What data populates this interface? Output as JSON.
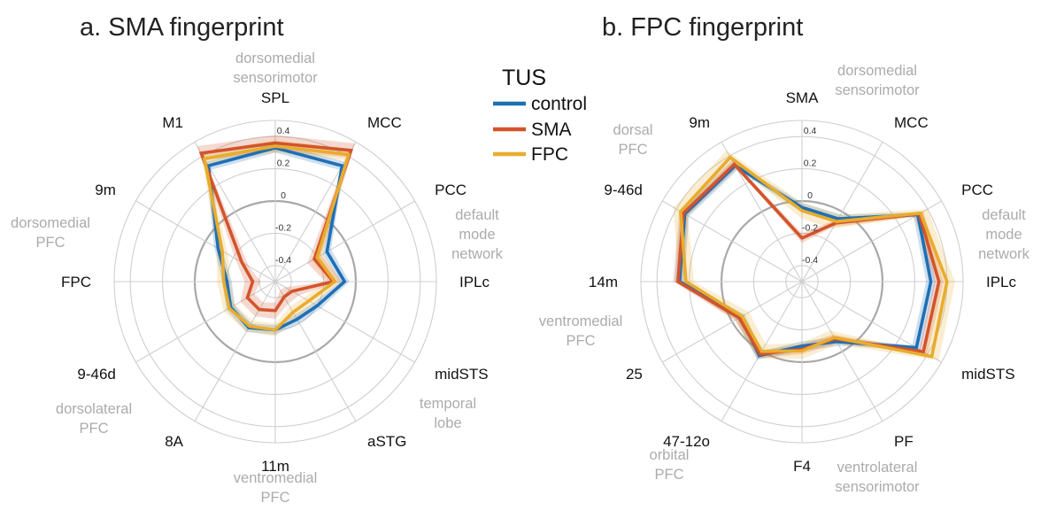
{
  "colors": {
    "control": "#1f6fb5",
    "SMA": "#d3542a",
    "FPC": "#e8ac2e",
    "grid": "#cfcfcf",
    "zero_ring": "#a8a8a8",
    "region_text": "#ababab"
  },
  "legend": {
    "title": "TUS",
    "items": [
      {
        "key": "control",
        "label": "control"
      },
      {
        "key": "SMA",
        "label": "SMA"
      },
      {
        "key": "FPC",
        "label": "FPC"
      }
    ]
  },
  "chart_data": [
    {
      "type": "radar",
      "title": "a. SMA fingerprint",
      "rlim": [
        -0.5,
        0.5
      ],
      "rings": [
        -0.4,
        -0.2,
        0,
        0.2,
        0.4
      ],
      "tick_labels": [
        "-0.4",
        "-0.2",
        "0",
        "0.2",
        "0.4"
      ],
      "highlight_ring": 0,
      "grid": true,
      "categories": [
        "SPL",
        "MCC",
        "PCC",
        "IPLc",
        "midSTS",
        "aSTG",
        "11m",
        "8A",
        "9-46d",
        "FPC",
        "9m",
        "M1"
      ],
      "region_labels": [
        {
          "text": [
            "dorsomedial",
            "sensorimotor"
          ]
        },
        {
          "text": [
            "default",
            "mode",
            "network"
          ]
        },
        {
          "text": [
            "temporal",
            "lobe"
          ]
        },
        {
          "text": [
            "ventromedial",
            "PFC"
          ]
        },
        {
          "text": [
            "dorsolateral",
            "PFC"
          ]
        },
        {
          "text": [
            "dorsomedial",
            "PFC"
          ]
        }
      ],
      "series": [
        {
          "key": "control",
          "values": [
            0.33,
            0.33,
            -0.13,
            -0.07,
            -0.2,
            -0.23,
            -0.2,
            -0.17,
            -0.18,
            -0.2,
            -0.09,
            0.33
          ],
          "band": 0.03
        },
        {
          "key": "SMA",
          "values": [
            0.36,
            0.44,
            -0.22,
            -0.14,
            -0.38,
            -0.39,
            -0.32,
            -0.3,
            -0.3,
            -0.36,
            -0.26,
            0.42
          ],
          "band": 0.05
        },
        {
          "key": "FPC",
          "values": [
            0.34,
            0.41,
            -0.2,
            -0.13,
            -0.26,
            -0.28,
            -0.2,
            -0.18,
            -0.17,
            -0.18,
            -0.12,
            0.38
          ],
          "band": 0.04
        }
      ]
    },
    {
      "type": "radar",
      "title": "b. FPC fingerprint",
      "rlim": [
        -0.5,
        0.5
      ],
      "rings": [
        -0.4,
        -0.2,
        0,
        0.2,
        0.4
      ],
      "tick_labels": [
        "-0.4",
        "-0.2",
        "0",
        "0.2",
        "0.4"
      ],
      "highlight_ring": 0,
      "grid": true,
      "categories": [
        "SMA",
        "MCC",
        "PCC",
        "IPLc",
        "midSTS",
        "PF",
        "F4",
        "47-12o",
        "25",
        "14m",
        "9-46d",
        "9m"
      ],
      "region_labels": [
        {
          "text": [
            "dorsomedial",
            "sensorimotor"
          ]
        },
        {
          "text": [
            "default",
            "mode",
            "network"
          ]
        },
        {
          "text": [
            "ventrolateral",
            "sensorimotor"
          ]
        },
        {
          "text": [
            "orbital",
            "PFC"
          ]
        },
        {
          "text": [
            "ventromedial",
            "PFC"
          ]
        },
        {
          "text": [
            "dorsal",
            "PFC"
          ]
        }
      ],
      "series": [
        {
          "key": "control",
          "values": [
            -0.04,
            -0.05,
            0.33,
            0.3,
            0.32,
            -0.07,
            -0.1,
            0.03,
            -0.06,
            0.26,
            0.34,
            0.33
          ],
          "band": 0.03
        },
        {
          "key": "SMA",
          "values": [
            -0.23,
            -0.08,
            0.34,
            0.35,
            0.37,
            -0.09,
            -0.08,
            0.02,
            -0.05,
            0.27,
            0.35,
            0.34
          ],
          "band": 0.03
        },
        {
          "key": "FPC",
          "values": [
            -0.06,
            -0.07,
            0.35,
            0.4,
            0.43,
            -0.1,
            -0.07,
            0.0,
            -0.07,
            0.22,
            0.37,
            0.39
          ],
          "band": 0.05
        }
      ]
    }
  ]
}
